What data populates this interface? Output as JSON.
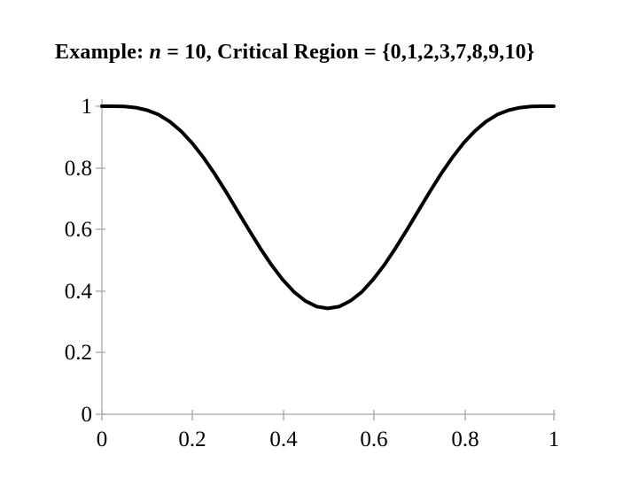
{
  "title": {
    "prefix": "Example:",
    "variable": "n",
    "suffix": "= 10, Critical Region = {0,1,2,3,7,8,9,10}"
  },
  "chart_data": {
    "type": "line",
    "title": "",
    "xlabel": "",
    "ylabel": "",
    "xlim": [
      0,
      1
    ],
    "ylim": [
      0,
      1
    ],
    "grid": false,
    "legend": "none",
    "x_tick_labels": [
      "0",
      "0.2",
      "0.4",
      "0.6",
      "0.8",
      "1"
    ],
    "y_tick_labels": [
      "1",
      "0.8",
      "0.6",
      "0.4",
      "0.2",
      "0"
    ],
    "colors": {
      "curve": "#000000",
      "axis_line": "#c8c8c8",
      "tick_mark": "#b0b0b0",
      "text": "#000000"
    },
    "series": [
      {
        "x": [
          0,
          0.025,
          0.05,
          0.075,
          0.1,
          0.125,
          0.15,
          0.175,
          0.2,
          0.225,
          0.25,
          0.275,
          0.3,
          0.325,
          0.35,
          0.375,
          0.4,
          0.425,
          0.45,
          0.475,
          0.5,
          0.525,
          0.55,
          0.575,
          0.6,
          0.625,
          0.65,
          0.675,
          0.7,
          0.725,
          0.75,
          0.775,
          0.8,
          0.825,
          0.85,
          0.875,
          0.9,
          0.925,
          0.95,
          0.975,
          1
        ],
        "y": [
          1.0,
          0.9999,
          0.999,
          0.9955,
          0.9872,
          0.973,
          0.9502,
          0.9193,
          0.88,
          0.8329,
          0.7794,
          0.7213,
          0.6602,
          0.5991,
          0.5399,
          0.4851,
          0.437,
          0.397,
          0.368,
          0.3497,
          0.3438,
          0.3497,
          0.368,
          0.397,
          0.437,
          0.4851,
          0.5399,
          0.5991,
          0.6602,
          0.7213,
          0.7794,
          0.8329,
          0.88,
          0.9193,
          0.9502,
          0.973,
          0.9872,
          0.9955,
          0.999,
          0.9999,
          1.0
        ]
      }
    ]
  }
}
